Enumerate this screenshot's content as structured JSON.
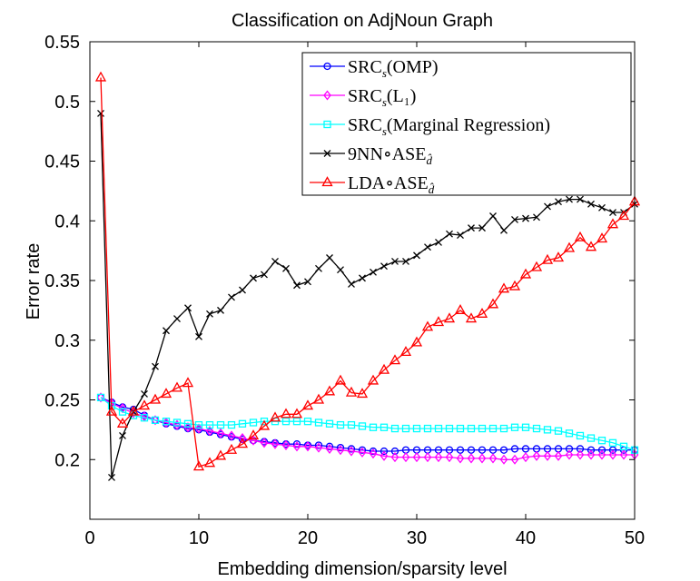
{
  "chart_data": {
    "type": "line",
    "title": "Classification on AdjNoun Graph",
    "xlabel": "Embedding dimension/sparsity level",
    "ylabel": "Error rate",
    "xlim": [
      0,
      50
    ],
    "ylim": [
      0.15,
      0.55
    ],
    "xticks": [
      0,
      10,
      20,
      30,
      40,
      50
    ],
    "xtick_labels": [
      "0",
      "10",
      "20",
      "30",
      "40",
      "50"
    ],
    "yticks": [
      0.2,
      0.25,
      0.3,
      0.35,
      0.4,
      0.45,
      0.5,
      0.55
    ],
    "ytick_labels": [
      "0.2",
      "0.25",
      "0.3",
      "0.35",
      "0.4",
      "0.45",
      "0.5",
      "0.55"
    ],
    "grid": false,
    "legend_position": "top-right",
    "x": [
      1,
      2,
      3,
      4,
      5,
      6,
      7,
      8,
      9,
      10,
      11,
      12,
      13,
      14,
      15,
      16,
      17,
      18,
      19,
      20,
      21,
      22,
      23,
      24,
      25,
      26,
      27,
      28,
      29,
      30,
      31,
      32,
      33,
      34,
      35,
      36,
      37,
      38,
      39,
      40,
      41,
      42,
      43,
      44,
      45,
      46,
      47,
      48,
      49,
      50
    ],
    "series": [
      {
        "name": "SRC_s(OMP)",
        "label_main": "SRC",
        "label_sub": "s",
        "label_rest": "(OMP)",
        "color": "#0000ff",
        "marker": "circle",
        "values": [
          0.252,
          0.248,
          0.244,
          0.242,
          0.237,
          0.233,
          0.23,
          0.228,
          0.226,
          0.225,
          0.223,
          0.221,
          0.219,
          0.217,
          0.216,
          0.215,
          0.214,
          0.213,
          0.213,
          0.212,
          0.212,
          0.211,
          0.21,
          0.209,
          0.208,
          0.207,
          0.207,
          0.207,
          0.208,
          0.208,
          0.208,
          0.208,
          0.208,
          0.208,
          0.208,
          0.208,
          0.208,
          0.208,
          0.209,
          0.209,
          0.209,
          0.209,
          0.209,
          0.209,
          0.209,
          0.208,
          0.208,
          0.208,
          0.208,
          0.208
        ]
      },
      {
        "name": "SRC_s(L_1)",
        "label_main": "SRC",
        "label_sub": "s",
        "label_rest": "(L₁)",
        "color": "#ff00ff",
        "marker": "diamond",
        "values": [
          0.252,
          0.247,
          0.243,
          0.239,
          0.236,
          0.233,
          0.231,
          0.229,
          0.227,
          0.226,
          0.224,
          0.222,
          0.22,
          0.218,
          0.216,
          0.214,
          0.213,
          0.212,
          0.211,
          0.211,
          0.21,
          0.209,
          0.208,
          0.207,
          0.206,
          0.205,
          0.203,
          0.202,
          0.202,
          0.202,
          0.202,
          0.202,
          0.202,
          0.201,
          0.201,
          0.201,
          0.201,
          0.2,
          0.2,
          0.202,
          0.203,
          0.203,
          0.203,
          0.204,
          0.204,
          0.204,
          0.204,
          0.204,
          0.204,
          0.204
        ]
      },
      {
        "name": "SRC_s(Marginal Regression)",
        "label_main": "SRC",
        "label_sub": "s",
        "label_rest": "(Marginal Regression)",
        "color": "#00ffff",
        "marker": "square",
        "values": [
          0.252,
          0.245,
          0.24,
          0.237,
          0.235,
          0.233,
          0.232,
          0.231,
          0.23,
          0.229,
          0.229,
          0.229,
          0.229,
          0.23,
          0.231,
          0.232,
          0.232,
          0.232,
          0.232,
          0.232,
          0.231,
          0.23,
          0.229,
          0.229,
          0.228,
          0.227,
          0.227,
          0.226,
          0.226,
          0.226,
          0.226,
          0.226,
          0.226,
          0.226,
          0.226,
          0.226,
          0.226,
          0.226,
          0.227,
          0.227,
          0.226,
          0.225,
          0.224,
          0.222,
          0.22,
          0.218,
          0.216,
          0.214,
          0.211,
          0.208
        ]
      },
      {
        "name": "9NN∘ASE_d̂",
        "label_main": "9NN∘ASE",
        "label_sub": "d̂",
        "label_rest": "",
        "color": "#000000",
        "marker": "x",
        "values": [
          0.49,
          0.185,
          0.22,
          0.24,
          0.255,
          0.278,
          0.308,
          0.318,
          0.327,
          0.303,
          0.322,
          0.325,
          0.336,
          0.342,
          0.352,
          0.355,
          0.366,
          0.36,
          0.346,
          0.349,
          0.36,
          0.369,
          0.359,
          0.347,
          0.352,
          0.357,
          0.362,
          0.366,
          0.366,
          0.371,
          0.378,
          0.382,
          0.389,
          0.388,
          0.394,
          0.394,
          0.404,
          0.392,
          0.401,
          0.402,
          0.403,
          0.412,
          0.416,
          0.418,
          0.418,
          0.414,
          0.411,
          0.407,
          0.407,
          0.414
        ]
      },
      {
        "name": "LDA∘ASE_d̂",
        "label_main": "LDA∘ASE",
        "label_sub": "d̂",
        "label_rest": "",
        "color": "#ff0000",
        "marker": "triangle",
        "values": [
          0.52,
          0.24,
          0.23,
          0.24,
          0.245,
          0.25,
          0.255,
          0.26,
          0.264,
          0.194,
          0.197,
          0.203,
          0.208,
          0.213,
          0.22,
          0.228,
          0.235,
          0.238,
          0.238,
          0.245,
          0.25,
          0.257,
          0.266,
          0.256,
          0.255,
          0.266,
          0.275,
          0.283,
          0.29,
          0.298,
          0.311,
          0.315,
          0.318,
          0.325,
          0.318,
          0.322,
          0.33,
          0.343,
          0.345,
          0.355,
          0.361,
          0.367,
          0.369,
          0.377,
          0.386,
          0.378,
          0.385,
          0.397,
          0.404,
          0.416
        ]
      }
    ]
  }
}
